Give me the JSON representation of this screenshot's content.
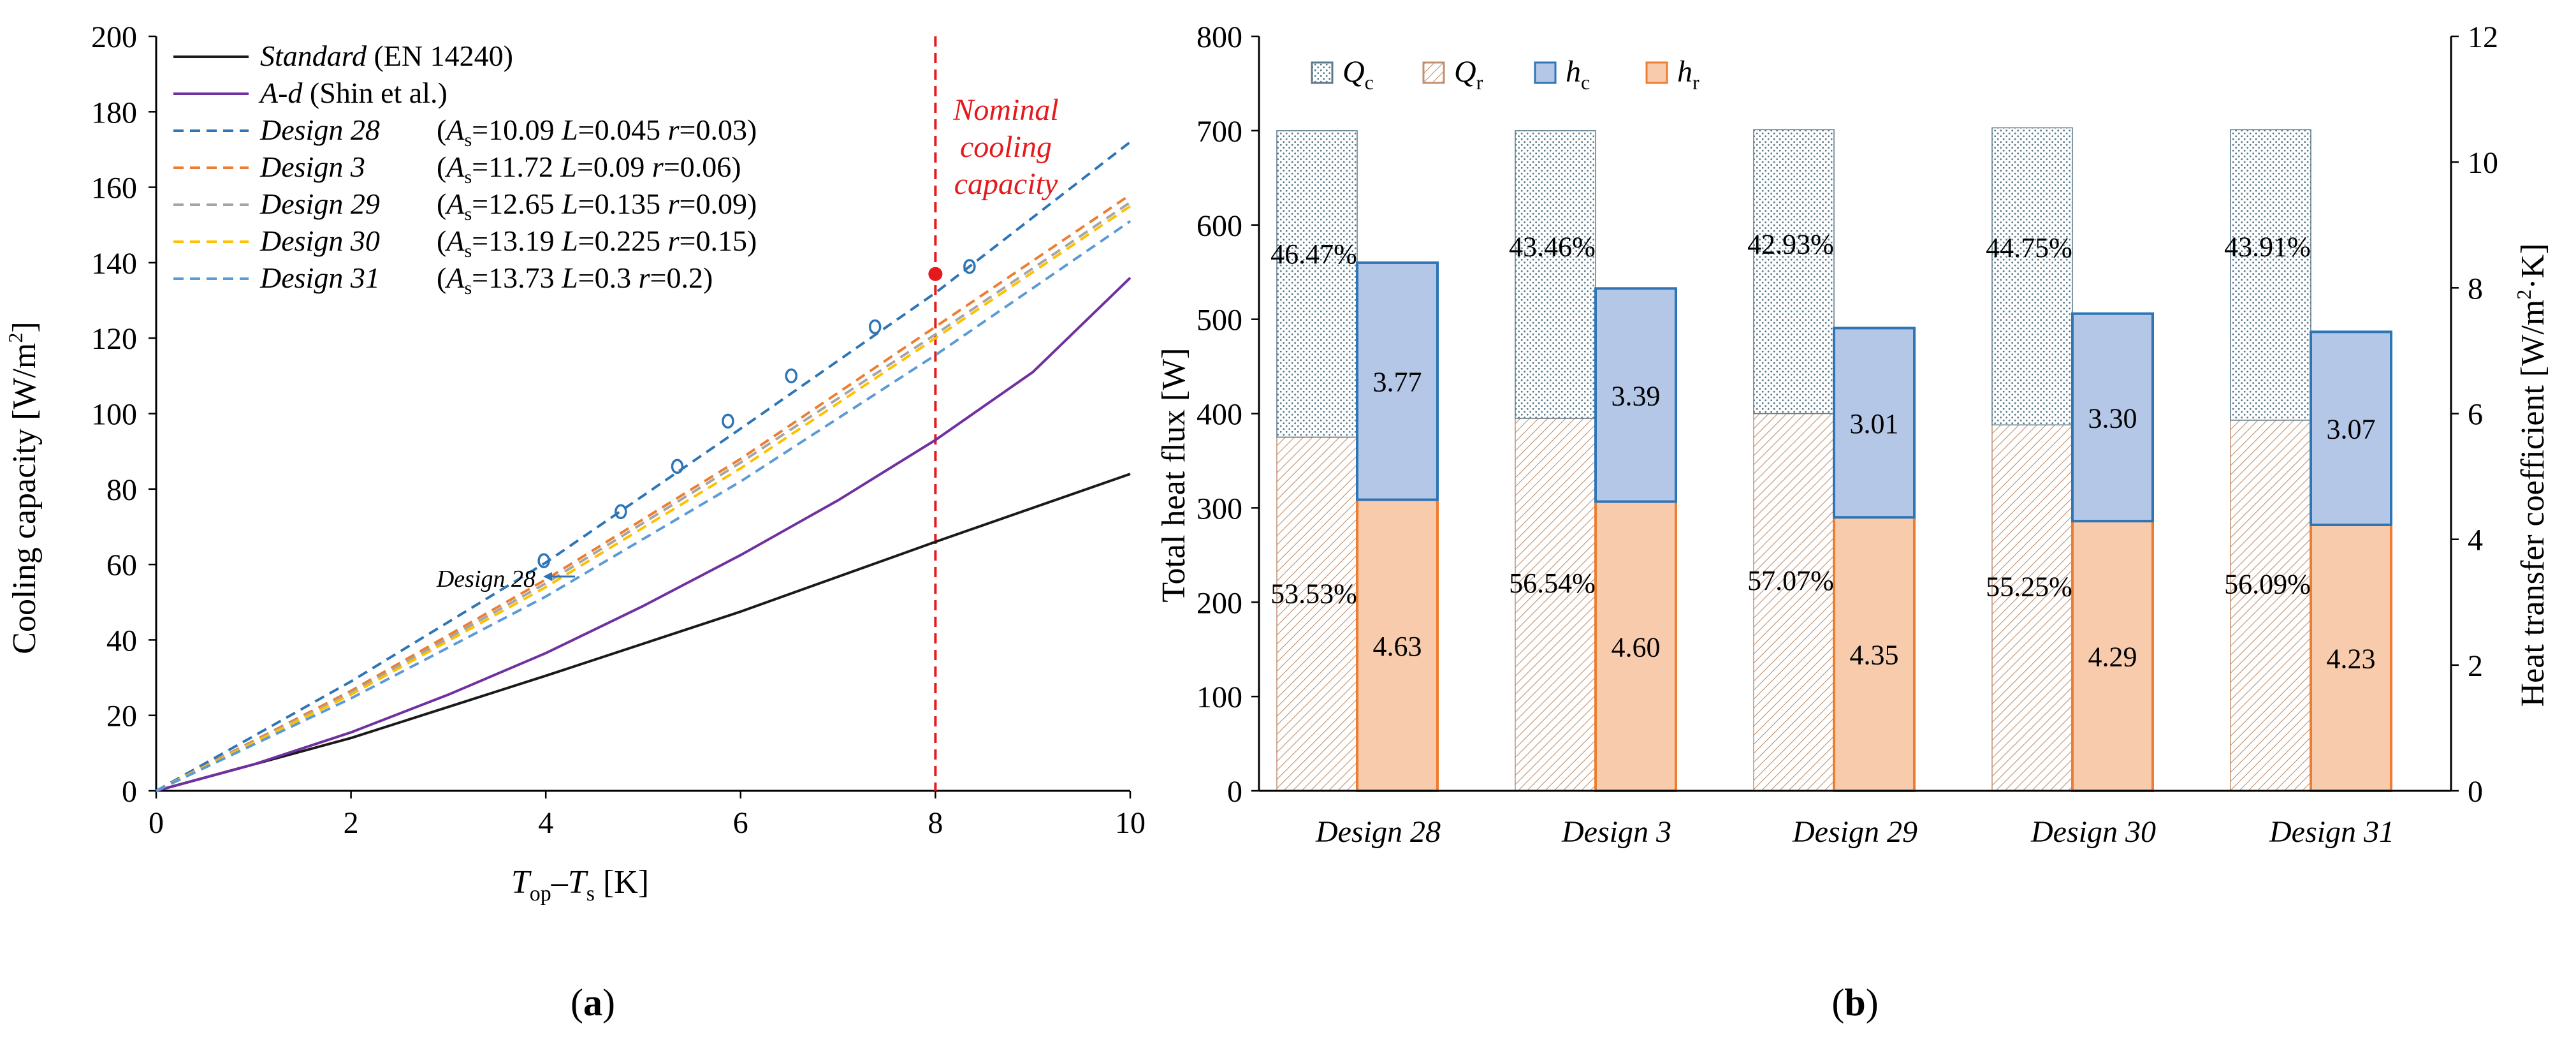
{
  "chart_data": [
    {
      "type": "line",
      "panel_label": "(a)",
      "panel_label_letter": "a",
      "xlabel_parts": [
        "T",
        "op",
        "–",
        "T",
        "s",
        " [K]"
      ],
      "ylabel_parts": [
        "Cooling capacity [W/m",
        "2",
        "]"
      ],
      "xlim": [
        0,
        10
      ],
      "ylim": [
        0,
        200
      ],
      "xticks": [
        0,
        2,
        4,
        6,
        8,
        10
      ],
      "yticks": [
        0,
        20,
        40,
        60,
        80,
        100,
        120,
        140,
        160,
        180,
        200
      ],
      "series": [
        {
          "name": "Standard",
          "name_suffix": " (EN 14240)",
          "color": "#1a1a1a",
          "dashed": false,
          "params": null,
          "x": [
            0,
            2,
            4,
            6,
            8,
            10
          ],
          "y": [
            0,
            14,
            30.5,
            47.5,
            66,
            84
          ]
        },
        {
          "name": "A-d",
          "name_suffix": " (Shin et al.)",
          "color": "#7030a0",
          "dashed": false,
          "params": null,
          "x": [
            0,
            1,
            2,
            3,
            4,
            5,
            6,
            7,
            8,
            9,
            10
          ],
          "y": [
            0,
            7,
            15.5,
            25.5,
            36.5,
            49,
            62.5,
            77,
            93,
            111,
            136
          ]
        },
        {
          "name": "Design 28",
          "name_suffix": "",
          "color": "#2e75b6",
          "dashed": true,
          "params": [
            "10.09",
            "0.045",
            "0.03"
          ],
          "x": [
            0,
            2,
            4,
            6,
            8,
            10
          ],
          "y": [
            0,
            29,
            60.5,
            96,
            132,
            172
          ]
        },
        {
          "name": "Design 3",
          "name_suffix": "",
          "color": "#ed7d31",
          "dashed": true,
          "params": [
            "11.72",
            "0.09",
            "0.06"
          ],
          "x": [
            0,
            2,
            4,
            6,
            8,
            10
          ],
          "y": [
            0,
            26.5,
            56,
            88,
            123,
            158
          ]
        },
        {
          "name": "Design 29",
          "name_suffix": "",
          "color": "#a5a5a5",
          "dashed": true,
          "params": [
            "12.65",
            "0.135",
            "0.09"
          ],
          "x": [
            0,
            2,
            4,
            6,
            8,
            10
          ],
          "y": [
            0,
            26,
            55,
            87,
            121,
            156
          ]
        },
        {
          "name": "Design 30",
          "name_suffix": "",
          "color": "#ffc000",
          "dashed": true,
          "params": [
            "13.19",
            "0.225",
            "0.15"
          ],
          "x": [
            0,
            2,
            4,
            6,
            8,
            10
          ],
          "y": [
            0,
            25.5,
            54,
            85.5,
            120,
            155
          ]
        },
        {
          "name": "Design 31",
          "name_suffix": "",
          "color": "#5b9bd5",
          "dashed": true,
          "params": [
            "13.73",
            "0.3",
            "0.2"
          ],
          "x": [
            0,
            2,
            4,
            6,
            8,
            10
          ],
          "y": [
            0,
            24.5,
            51.5,
            82,
            115.5,
            151
          ]
        }
      ],
      "markers": {
        "series": "Design 28",
        "color": "#2e75b6",
        "x": [
          3.98,
          4.77,
          5.35,
          5.87,
          6.52,
          7.38,
          8.35
        ],
        "y": [
          61,
          74,
          86,
          98,
          110,
          123,
          139
        ]
      },
      "param_labels": {
        "a_sym": "A",
        "a_sub": "s",
        "l_sym": "L",
        "r_sym": "r"
      },
      "vertical_line": {
        "x": 8,
        "color": "#e41a1c"
      },
      "nominal_point": {
        "x": 8,
        "y": 137,
        "color": "#e41a1c"
      },
      "annotations": [
        {
          "text_lines": [
            "Nominal",
            "cooling",
            "capacity"
          ],
          "color": "#e41a1c"
        },
        {
          "text": "Design 28",
          "color": "#1a1a1a"
        }
      ]
    },
    {
      "type": "bar",
      "panel_label": "(b)",
      "panel_label_letter": "b",
      "ylabel": "Total heat flux [W]",
      "ylabel2_parts": [
        "Heat transfer coefficient [W/m",
        "2",
        "·K]"
      ],
      "ylim": [
        0,
        800
      ],
      "ylim2": [
        0,
        12
      ],
      "yticks": [
        0,
        100,
        200,
        300,
        400,
        500,
        600,
        700,
        800
      ],
      "yticks2": [
        0,
        2,
        4,
        6,
        8,
        10,
        12
      ],
      "categories": [
        "Design 28",
        "Design 3",
        "Design 29",
        "Design 30",
        "Design 31"
      ],
      "series": [
        {
          "name": "Q_c",
          "label_sym": "Q",
          "label_sub": "c",
          "axis": "left",
          "stack": "Q",
          "pattern": "dots",
          "values": [
            325,
            305,
            301,
            315,
            308
          ],
          "percent_labels": [
            "46.47%",
            "43.46%",
            "42.93%",
            "44.75%",
            "43.91%"
          ]
        },
        {
          "name": "Q_r",
          "label_sym": "Q",
          "label_sub": "r",
          "axis": "left",
          "stack": "Q",
          "pattern": "hatch",
          "values": [
            375,
            395,
            400,
            388,
            393
          ],
          "percent_labels": [
            "53.53%",
            "56.54%",
            "57.07%",
            "55.25%",
            "56.09%"
          ]
        },
        {
          "name": "h_c",
          "label_sym": "h",
          "label_sub": "c",
          "axis": "right",
          "stack": "h",
          "pattern": "solid-blue",
          "values": [
            3.77,
            3.39,
            3.01,
            3.3,
            3.07
          ],
          "value_labels": [
            "3.77",
            "3.39",
            "3.01",
            "3.30",
            "3.07"
          ]
        },
        {
          "name": "h_r",
          "label_sym": "h",
          "label_sub": "r",
          "axis": "right",
          "stack": "h",
          "pattern": "solid-orange",
          "values": [
            4.63,
            4.6,
            4.35,
            4.29,
            4.23
          ],
          "value_labels": [
            "4.63",
            "4.60",
            "4.35",
            "4.29",
            "4.23"
          ]
        }
      ],
      "colors": {
        "blue_fill": "#b4c7e7",
        "blue_edge": "#2e75b6",
        "orange_fill": "#f8cbad",
        "orange_edge": "#ed7d31",
        "hatch": "#c09070",
        "dots": "#5a7a8a"
      }
    }
  ]
}
